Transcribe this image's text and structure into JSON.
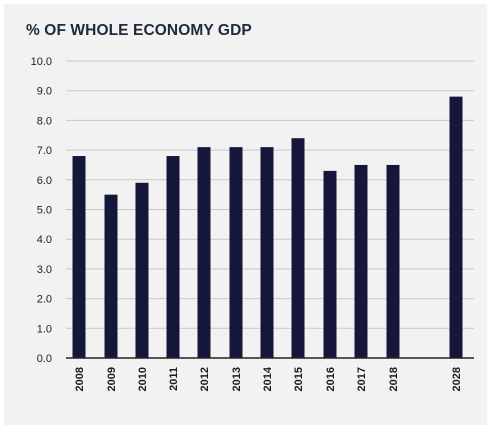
{
  "chart_data": {
    "type": "bar",
    "title": "% OF WHOLE ECONOMY GDP",
    "xlabel": "",
    "ylabel": "",
    "categories": [
      "2008",
      "2009",
      "2010",
      "2011",
      "2012",
      "2013",
      "2014",
      "2015",
      "2016",
      "2017",
      "2018",
      "2028"
    ],
    "values": [
      6.8,
      5.5,
      5.9,
      6.8,
      7.1,
      7.1,
      7.1,
      7.4,
      6.3,
      6.5,
      6.5,
      8.8
    ],
    "ylim": [
      0,
      10
    ],
    "yticks": [
      "0.0",
      "1.0",
      "2.0",
      "3.0",
      "4.0",
      "5.0",
      "6.0",
      "7.0",
      "8.0",
      "9.0",
      "10.0"
    ],
    "grid": "horizontal",
    "legend": "none",
    "bar_color": "#14173a",
    "grid_color": "#c8c8c8",
    "axis_color": "#222222"
  }
}
